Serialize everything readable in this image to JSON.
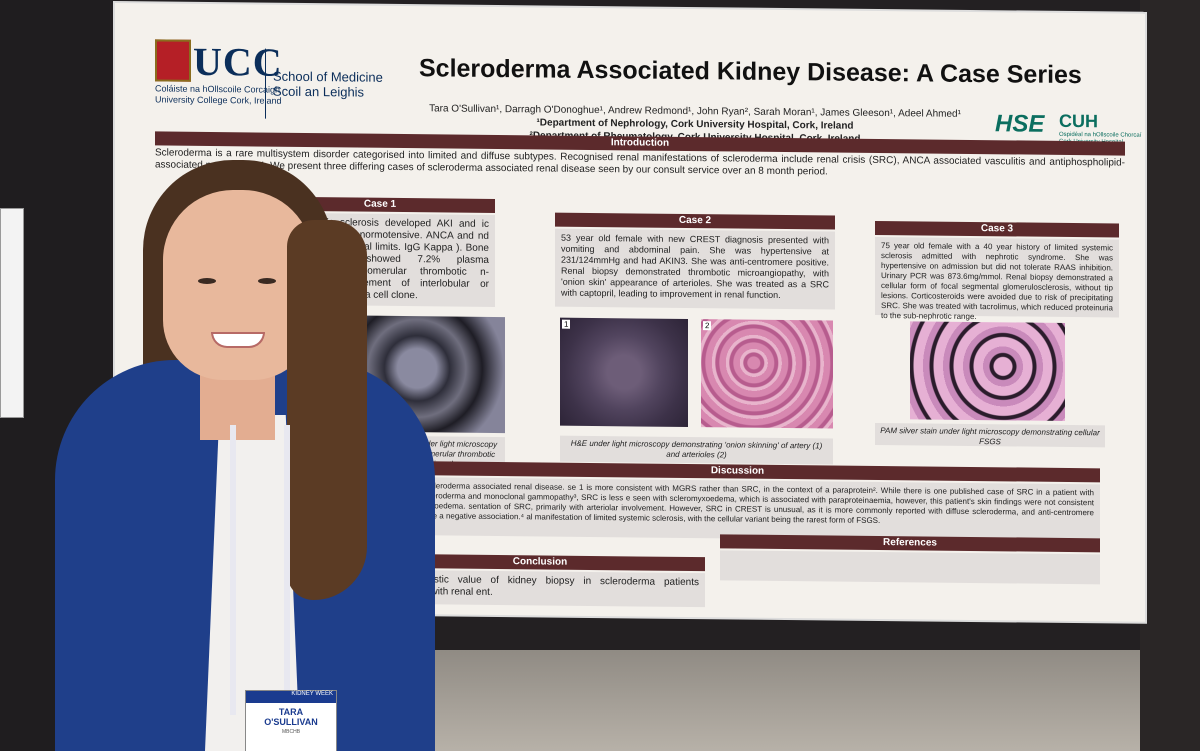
{
  "poster": {
    "institution_logo": "UCC",
    "institution_irish": "Coláiste na hOllscoile Corcaigh",
    "institution_english": "University College Cork, Ireland",
    "school_line1": "School of Medicine",
    "school_line2": "Scoil an Leighis",
    "title": "Scleroderma Associated Kidney Disease: A Case Series",
    "authors": "Tara O'Sullivan¹, Darragh O'Donoghue¹, Andrew Redmond¹, John Ryan², Sarah Moran¹, James Gleeson¹, Adeel Ahmed¹",
    "affiliation1": "¹Department of Nephrology, Cork University Hospital, Cork, Ireland",
    "affiliation2": "²Department of Rheumatology, Cork University Hospital, Cork, Ireland",
    "hse_logo": "HSE",
    "cuh_logo": "CUH",
    "cuh_sub": "Ospidéal na hOllscoile Chorcaí Cork University Hospital",
    "introduction_header": "Introduction",
    "introduction_text": "Scleroderma is a rare multisystem disorder categorised into limited and diffuse subtypes. Recognised renal manifestations of scleroderma include renal crisis (SRC), ANCA associated vasculitis and antiphospholipid-associated nephropathy¹. We present three differing cases of scleroderma associated renal disease seen by our consult service over an 8 month period.",
    "case1_header": "Case 1",
    "case1_text": "with systemic sclerosis developed AKI and ic anaemia. She was normotensive. ANCA and nd C4 were within normal limits. IgG Kappa ). Bone marrow biopsy showed 7.2% plasma emonstrated intraglomerular thrombotic n-skinning or involvement of interlobular or targeted at the plasma cell clone.",
    "case2_header": "Case 2",
    "case2_text": "53 year old female with new CREST diagnosis presented with vomiting and abdominal pain. She was hypertensive at 231/124mmHg and had AKIN3. She was anti-centromere positive. Renal biopsy demonstrated thrombotic microangiopathy, with 'onion skin' appearance of arterioles. She was treated as a SRC with captopril, leading to improvement in renal function.",
    "case3_header": "Case 3",
    "case3_text": "75 year old female with a 40 year history of limited systemic sclerosis admitted with nephrotic syndrome. She was hypertensive on admission but did not tolerate RAAS inhibition. Urinary PCR was 873.6mg/mmol. Renal biopsy demonstrated a cellular form of focal segmental glomerulosclerosis, without tip lesions. Corticosteroids were avoided due to risk of precipitating SRC. She was treated with tacrolimus, which reduced proteinuria to the sub-nephrotic range.",
    "caption1": "AM silver stain under light microscopy onstrating intraglomerular thrombotic microangiopathy",
    "caption2": "H&E under light microscopy demonstrating 'onion skinning' of artery (1) and arterioles (2)",
    "caption3": "PAM silver stain under light microscopy demonstrating cellular FSGS",
    "img_label_1": "1",
    "img_label_2": "2",
    "discussion_header": "Discussion",
    "discussion_text": "entations of scleroderma associated renal disease. se 1 is more consistent with MGRS rather than SRC, in the context of a paraprotein². While there is one published case of SRC in a patient with concurrent scleroderma and monoclonal gammopathy³, SRC is less e seen with scleromyxoedema, which is associated with paraproteinaemia, however, this patient's skin findings were not consistent with scleromyxoedema. sentation of SRC, primarily with arteriolar involvement. However, SRC in CREST is unusual, as it is more commonly reported with diffuse scleroderma, and anti-centromere antibodies have a negative association.⁴ al manifestation of limited systemic sclerosis, with the cellular variant being the rarest form of FSGS.",
    "conclusion_header": "Conclusion",
    "conclusion_text": "the diagnostic value of kidney biopsy in scleroderma patients presenting with renal ent.",
    "references_header": "References"
  },
  "badge": {
    "name_line1": "TARA",
    "name_line2": "O'SULLIVAN",
    "credential": "MBCHB",
    "event": "KIDNEY WEEK"
  }
}
